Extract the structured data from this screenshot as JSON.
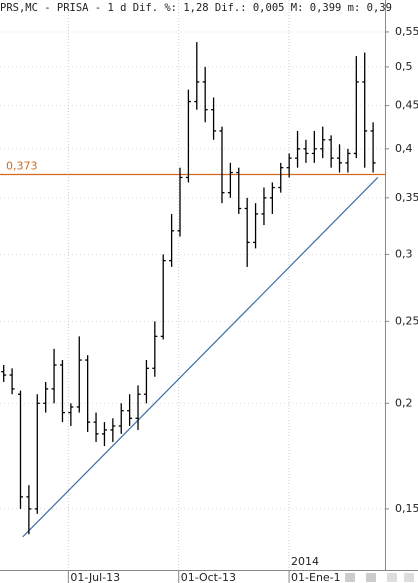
{
  "chart_data": {
    "type": "ohlc",
    "title": "PRS,MC - PRISA -  1 d Dif. %: 1,28 Dif.: 0,005 M: 0,399 m: 0,39",
    "x": [
      "2013-05-06",
      "2013-05-13",
      "2013-05-20",
      "2013-05-27",
      "2013-06-03",
      "2013-06-10",
      "2013-06-17",
      "2013-06-24",
      "2013-07-01",
      "2013-07-08",
      "2013-07-15",
      "2013-07-22",
      "2013-07-29",
      "2013-08-05",
      "2013-08-12",
      "2013-08-19",
      "2013-08-26",
      "2013-09-02",
      "2013-09-09",
      "2013-09-16",
      "2013-09-23",
      "2013-09-30",
      "2013-10-07",
      "2013-10-14",
      "2013-10-21",
      "2013-10-28",
      "2013-11-04",
      "2013-11-11",
      "2013-11-18",
      "2013-11-25",
      "2013-12-02",
      "2013-12-09",
      "2013-12-16",
      "2013-12-23",
      "2013-12-30",
      "2014-01-06",
      "2014-01-13",
      "2014-01-20",
      "2014-01-27",
      "2014-02-03",
      "2014-02-10",
      "2014-02-17",
      "2014-02-24",
      "2014-03-03",
      "2014-03-10"
    ],
    "open": [
      0.218,
      0.216,
      0.205,
      0.155,
      0.15,
      0.2,
      0.208,
      0.222,
      0.195,
      0.198,
      0.225,
      0.19,
      0.184,
      0.186,
      0.188,
      0.196,
      0.192,
      0.205,
      0.22,
      0.24,
      0.295,
      0.32,
      0.37,
      0.455,
      0.48,
      0.445,
      0.42,
      0.355,
      0.375,
      0.34,
      0.31,
      0.335,
      0.35,
      0.36,
      0.38,
      0.39,
      0.4,
      0.395,
      0.4,
      0.41,
      0.39,
      0.385,
      0.395,
      0.48,
      0.42
    ],
    "high": [
      0.222,
      0.22,
      0.207,
      0.16,
      0.205,
      0.212,
      0.232,
      0.225,
      0.2,
      0.24,
      0.228,
      0.195,
      0.19,
      0.192,
      0.2,
      0.205,
      0.21,
      0.225,
      0.25,
      0.3,
      0.335,
      0.38,
      0.47,
      0.535,
      0.5,
      0.46,
      0.425,
      0.385,
      0.38,
      0.35,
      0.345,
      0.36,
      0.365,
      0.385,
      0.395,
      0.42,
      0.41,
      0.42,
      0.425,
      0.415,
      0.405,
      0.4,
      0.515,
      0.52,
      0.43
    ],
    "low": [
      0.212,
      0.205,
      0.15,
      0.14,
      0.148,
      0.195,
      0.2,
      0.19,
      0.188,
      0.195,
      0.185,
      0.18,
      0.178,
      0.18,
      0.184,
      0.188,
      0.186,
      0.2,
      0.215,
      0.238,
      0.29,
      0.315,
      0.365,
      0.445,
      0.43,
      0.41,
      0.345,
      0.35,
      0.335,
      0.29,
      0.305,
      0.325,
      0.335,
      0.355,
      0.37,
      0.38,
      0.385,
      0.385,
      0.39,
      0.38,
      0.375,
      0.375,
      0.39,
      0.38,
      0.375
    ],
    "close": [
      0.216,
      0.208,
      0.155,
      0.15,
      0.2,
      0.208,
      0.222,
      0.195,
      0.198,
      0.225,
      0.19,
      0.184,
      0.186,
      0.188,
      0.196,
      0.192,
      0.205,
      0.22,
      0.24,
      0.295,
      0.32,
      0.37,
      0.455,
      0.48,
      0.445,
      0.42,
      0.355,
      0.375,
      0.34,
      0.31,
      0.335,
      0.35,
      0.36,
      0.38,
      0.39,
      0.4,
      0.395,
      0.4,
      0.41,
      0.39,
      0.385,
      0.395,
      0.48,
      0.42,
      0.385
    ],
    "color": "#000000",
    "log_scale": true,
    "grid": true,
    "xlim": [
      "2013-05-05",
      "2014-03-22"
    ],
    "xticks": [
      {
        "value": "2013-07-01",
        "label": "01-Jul-13"
      },
      {
        "value": "2013-10-01",
        "label": "01-Oct-13"
      },
      {
        "value": "2014-01-01",
        "label": "01-Ene-1"
      }
    ],
    "year_marker": {
      "value": "2014-01-01",
      "label": "2014"
    },
    "ylim": [
      0.127,
      0.6
    ],
    "yticks": [
      {
        "value": 0.15,
        "label": "0,15"
      },
      {
        "value": 0.2,
        "label": "0,2"
      },
      {
        "value": 0.25,
        "label": "0,25"
      },
      {
        "value": 0.3,
        "label": "0,3"
      },
      {
        "value": 0.35,
        "label": "0,35"
      },
      {
        "value": 0.4,
        "label": "0,4"
      },
      {
        "value": 0.45,
        "label": "0,45"
      },
      {
        "value": 0.5,
        "label": "0,5"
      },
      {
        "value": 0.55,
        "label": "0,55"
      }
    ],
    "hline": {
      "value": 0.373,
      "label": "0,373",
      "color": "#d2691e"
    },
    "trendline": {
      "x": [
        "2013-05-24",
        "2014-03-16"
      ],
      "values": [
        0.139,
        0.37
      ],
      "color": "#3a6ea5"
    }
  }
}
